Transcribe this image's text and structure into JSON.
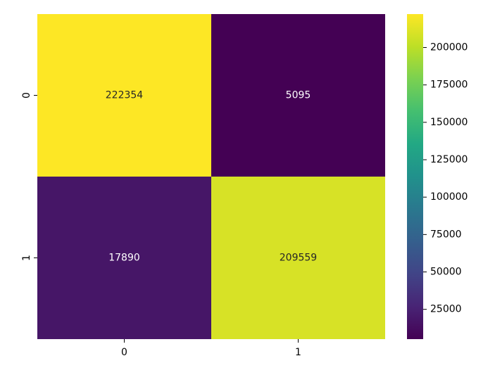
{
  "chart_data": {
    "type": "heatmap",
    "title": "",
    "xlabel": "",
    "ylabel": "",
    "x_categories": [
      "0",
      "1"
    ],
    "y_categories": [
      "0",
      "1"
    ],
    "values": [
      [
        222354,
        5095
      ],
      [
        17890,
        209559
      ]
    ],
    "annotations": [
      "222354",
      "5095",
      "17890",
      "209559"
    ],
    "colormap": "viridis",
    "color_range": [
      5095,
      222354
    ],
    "colorbar_ticks": [
      "25000",
      "50000",
      "75000",
      "100000",
      "125000",
      "150000",
      "175000",
      "200000"
    ],
    "colors": {
      "low": "#440154",
      "high": "#fde725"
    }
  }
}
